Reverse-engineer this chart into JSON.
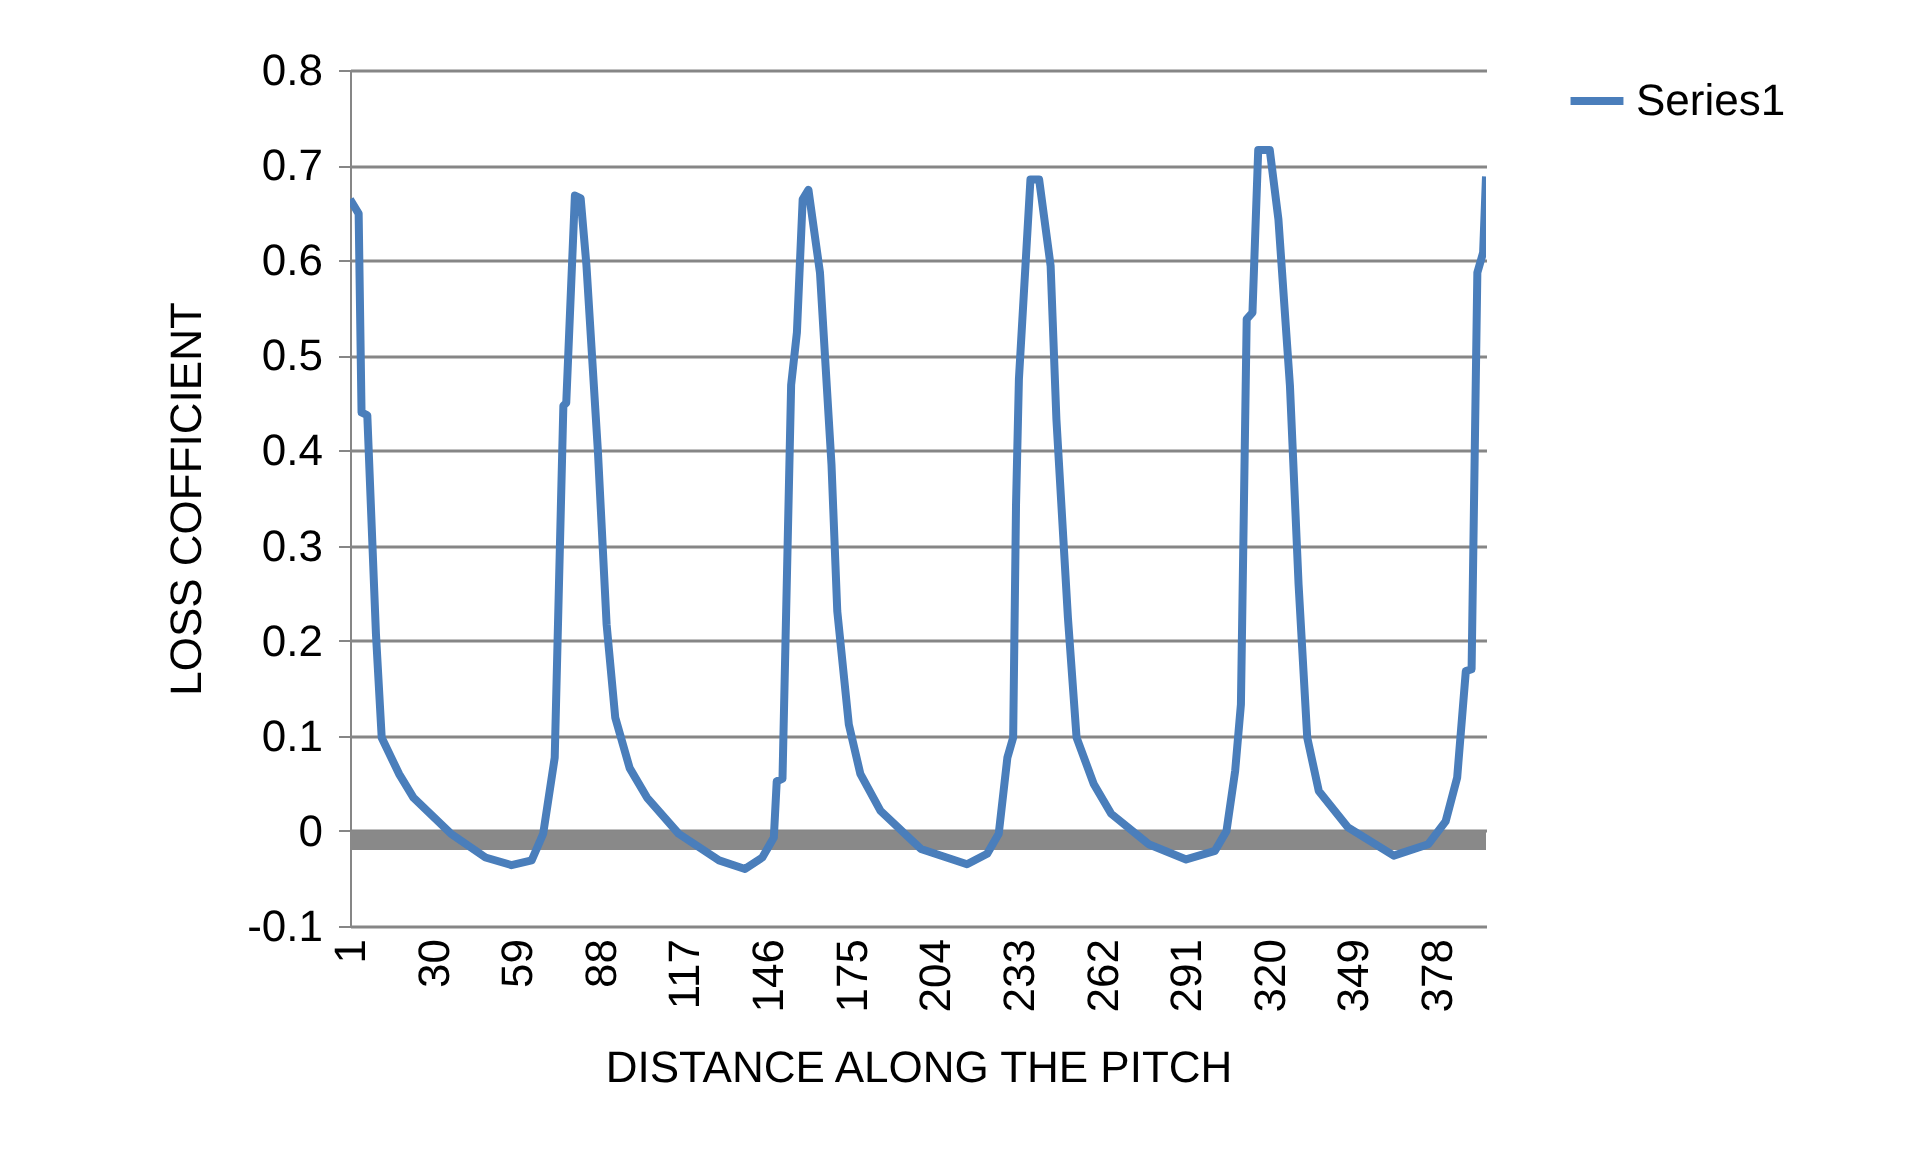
{
  "chart_data": {
    "type": "line",
    "xlabel": "DISTANCE ALONG THE PITCH",
    "ylabel": "LOSS COFFICIENT",
    "x": [
      1,
      4,
      5,
      7,
      10,
      12,
      18,
      23,
      36,
      48,
      57,
      64,
      68,
      72,
      75,
      76,
      79,
      81,
      83,
      87,
      90,
      93,
      98,
      104,
      115,
      129,
      138,
      144,
      148,
      149,
      151,
      154,
      156,
      158,
      160,
      164,
      168,
      170,
      174,
      178,
      185,
      199,
      215,
      222,
      226,
      229,
      231,
      232,
      233,
      237,
      240,
      244,
      246,
      250,
      253,
      259,
      265,
      278,
      291,
      301,
      305,
      308,
      310,
      312,
      314,
      316,
      320,
      323,
      327,
      330,
      333,
      337,
      347,
      363,
      375,
      381,
      385,
      388,
      390,
      392,
      394,
      395
    ],
    "series": [
      {
        "name": "Series1",
        "color": "#4a7ebb",
        "values": [
          0.664,
          0.649,
          0.44,
          0.437,
          0.207,
          0.098,
          0.06,
          0.035,
          -0.003,
          -0.028,
          -0.036,
          -0.031,
          -0.003,
          0.077,
          0.447,
          0.45,
          0.668,
          0.665,
          0.595,
          0.398,
          0.217,
          0.119,
          0.066,
          0.035,
          -0.003,
          -0.031,
          -0.04,
          -0.028,
          -0.007,
          0.052,
          0.055,
          0.469,
          0.524,
          0.664,
          0.674,
          0.587,
          0.385,
          0.231,
          0.112,
          0.06,
          0.021,
          -0.019,
          -0.035,
          -0.024,
          -0.003,
          0.077,
          0.098,
          0.343,
          0.475,
          0.685,
          0.685,
          0.594,
          0.433,
          0.224,
          0.098,
          0.049,
          0.018,
          -0.014,
          -0.03,
          -0.021,
          0,
          0.063,
          0.133,
          0.538,
          0.545,
          0.716,
          0.716,
          0.643,
          0.468,
          0.259,
          0.098,
          0.042,
          0.004,
          -0.026,
          -0.014,
          0.01,
          0.056,
          0.168,
          0.17,
          0.587,
          0.608,
          0.688
        ]
      }
    ],
    "xlim": [
      1,
      395
    ],
    "xticks": [
      1,
      30,
      59,
      88,
      117,
      146,
      175,
      204,
      233,
      262,
      291,
      320,
      349,
      378
    ],
    "ylim": [
      -0.1,
      0.8
    ],
    "yticks": [
      -0.1,
      0,
      0.1,
      0.2,
      0.3,
      0.4,
      0.5,
      0.6,
      0.7,
      0.8
    ],
    "grid": "y",
    "legend": "right",
    "bands": [
      {
        "axis": "y",
        "from": -0.02,
        "to": 0,
        "color": "#898989"
      }
    ]
  }
}
